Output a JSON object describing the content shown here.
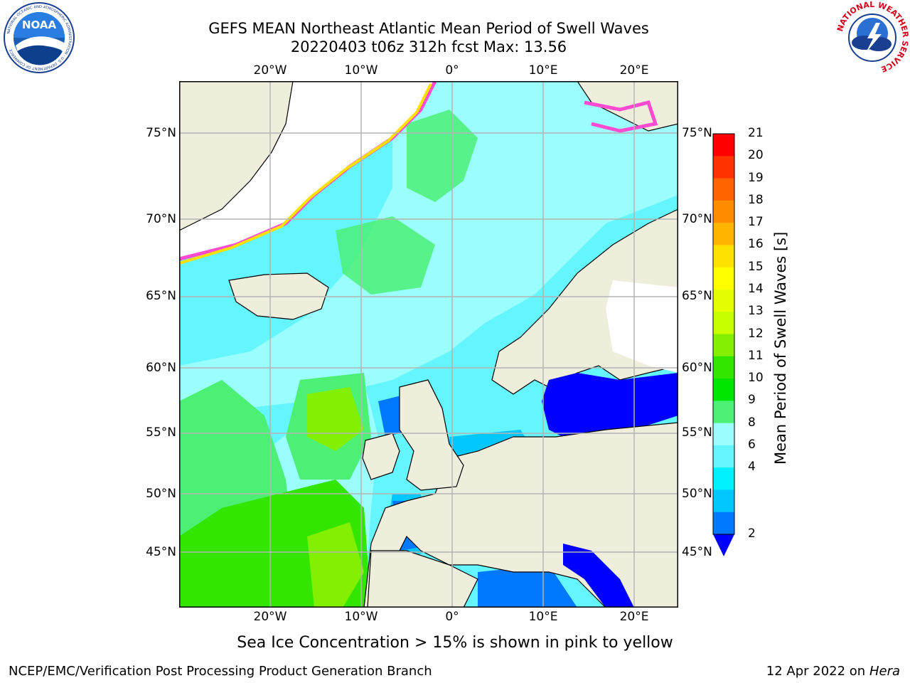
{
  "header": {
    "title_line1": "GEFS MEAN Northeast Atlantic Mean Period of Swell Waves",
    "title_line2": "20220403 t06z 312h fcst   Max: 13.56"
  },
  "logos": {
    "noaa_text": "NOAA",
    "noaa_ring": "NATIONAL OCEANIC AND ATMOSPHERIC ADMINISTRATION · U.S. DEPARTMENT OF COMMERCE",
    "nws_ring": "NATIONAL WEATHER SERVICE"
  },
  "map": {
    "lon_ticks": [
      "20°W",
      "10°W",
      "0°",
      "10°E",
      "20°E"
    ],
    "lat_ticks": [
      "75°N",
      "70°N",
      "65°N",
      "60°N",
      "55°N",
      "50°N",
      "45°N"
    ],
    "colors": {
      "land": "#efeddc",
      "ice_white": "#ffffff",
      "grid": "#b4b4b4",
      "coast": "#000000"
    }
  },
  "colorbar": {
    "title": "Mean Period of Swell Waves [s]",
    "labels": [
      "21",
      "20",
      "19",
      "18",
      "17",
      "16",
      "15",
      "14",
      "13",
      "12",
      "11",
      "10",
      "9",
      "8",
      "6",
      "4",
      "2"
    ],
    "colors": [
      "#ff0000",
      "#ff3200",
      "#ff6400",
      "#ff8c00",
      "#ffb400",
      "#ffe100",
      "#ffff00",
      "#e6ff00",
      "#c8ff00",
      "#82f000",
      "#32e600",
      "#00e600",
      "#4bf075",
      "#9bffff",
      "#64f5ff",
      "#00f0ff",
      "#00c8ff",
      "#0078ff"
    ],
    "extend_color": "#0000ff"
  },
  "footer": {
    "note": "Sea Ice Concentration > 15% is shown in pink to yellow",
    "left": "NCEP/EMC/Verification Post Processing Product Generation Branch",
    "right_prefix": "12 Apr 2022 on ",
    "right_italic": "Hera"
  }
}
